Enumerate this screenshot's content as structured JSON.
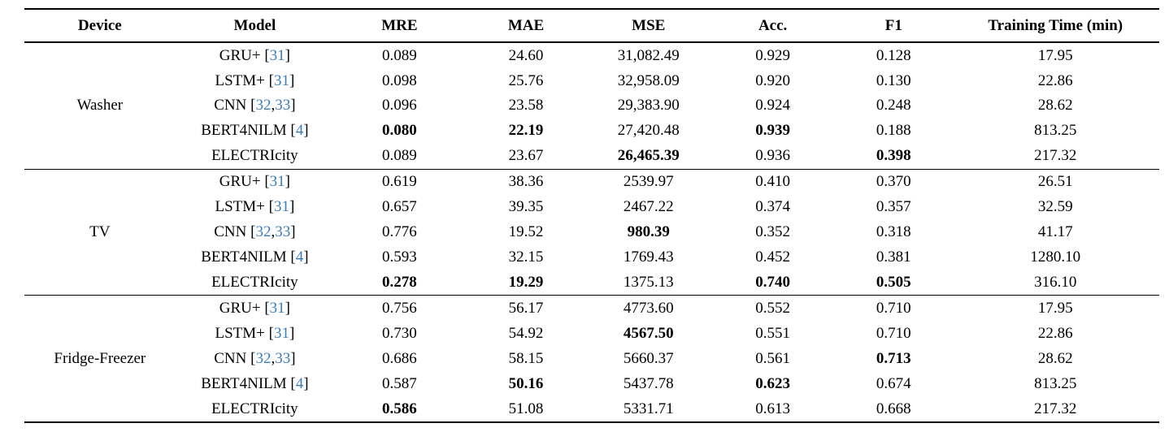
{
  "table": {
    "headers": [
      "Device",
      "Model",
      "MRE",
      "MAE",
      "MSE",
      "Acc.",
      "F1",
      "Training Time (min)"
    ],
    "citation_color": "#3A7CBE",
    "groups": [
      {
        "device": "Washer",
        "rows": [
          {
            "model": [
              {
                "t": "GRU+ ["
              },
              {
                "t": "31",
                "cite": true
              },
              {
                "t": "]"
              }
            ],
            "cells": [
              {
                "v": "0.089"
              },
              {
                "v": "24.60"
              },
              {
                "v": "31,082.49"
              },
              {
                "v": "0.929"
              },
              {
                "v": "0.128"
              },
              {
                "v": "17.95"
              }
            ]
          },
          {
            "model": [
              {
                "t": "LSTM+ ["
              },
              {
                "t": "31",
                "cite": true
              },
              {
                "t": "]"
              }
            ],
            "cells": [
              {
                "v": "0.098"
              },
              {
                "v": "25.76"
              },
              {
                "v": "32,958.09"
              },
              {
                "v": "0.920"
              },
              {
                "v": "0.130"
              },
              {
                "v": "22.86"
              }
            ]
          },
          {
            "model": [
              {
                "t": "CNN ["
              },
              {
                "t": "32",
                "cite": true
              },
              {
                "t": ","
              },
              {
                "t": "33",
                "cite": true
              },
              {
                "t": "]"
              }
            ],
            "cells": [
              {
                "v": "0.096"
              },
              {
                "v": "23.58"
              },
              {
                "v": "29,383.90"
              },
              {
                "v": "0.924"
              },
              {
                "v": "0.248"
              },
              {
                "v": "28.62"
              }
            ]
          },
          {
            "model": [
              {
                "t": "BERT4NILM ["
              },
              {
                "t": "4",
                "cite": true
              },
              {
                "t": "]"
              }
            ],
            "cells": [
              {
                "v": "0.080",
                "b": true
              },
              {
                "v": "22.19",
                "b": true
              },
              {
                "v": "27,420.48"
              },
              {
                "v": "0.939",
                "b": true
              },
              {
                "v": "0.188"
              },
              {
                "v": "813.25"
              }
            ]
          },
          {
            "model": [
              {
                "t": "ELECTRIcity"
              }
            ],
            "cells": [
              {
                "v": "0.089"
              },
              {
                "v": "23.67"
              },
              {
                "v": "26,465.39",
                "b": true
              },
              {
                "v": "0.936"
              },
              {
                "v": "0.398",
                "b": true
              },
              {
                "v": "217.32"
              }
            ]
          }
        ]
      },
      {
        "device": "TV",
        "rows": [
          {
            "model": [
              {
                "t": "GRU+ ["
              },
              {
                "t": "31",
                "cite": true
              },
              {
                "t": "]"
              }
            ],
            "cells": [
              {
                "v": "0.619"
              },
              {
                "v": "38.36"
              },
              {
                "v": "2539.97"
              },
              {
                "v": "0.410"
              },
              {
                "v": "0.370"
              },
              {
                "v": "26.51"
              }
            ]
          },
          {
            "model": [
              {
                "t": "LSTM+ ["
              },
              {
                "t": "31",
                "cite": true
              },
              {
                "t": "]"
              }
            ],
            "cells": [
              {
                "v": "0.657"
              },
              {
                "v": "39.35"
              },
              {
                "v": "2467.22"
              },
              {
                "v": "0.374"
              },
              {
                "v": "0.357"
              },
              {
                "v": "32.59"
              }
            ]
          },
          {
            "model": [
              {
                "t": "CNN ["
              },
              {
                "t": "32",
                "cite": true
              },
              {
                "t": ","
              },
              {
                "t": "33",
                "cite": true
              },
              {
                "t": "]"
              }
            ],
            "cells": [
              {
                "v": "0.776"
              },
              {
                "v": "19.52"
              },
              {
                "v": "980.39",
                "b": true
              },
              {
                "v": "0.352"
              },
              {
                "v": "0.318"
              },
              {
                "v": "41.17"
              }
            ]
          },
          {
            "model": [
              {
                "t": "BERT4NILM ["
              },
              {
                "t": "4",
                "cite": true
              },
              {
                "t": "]"
              }
            ],
            "cells": [
              {
                "v": "0.593"
              },
              {
                "v": "32.15"
              },
              {
                "v": "1769.43"
              },
              {
                "v": "0.452"
              },
              {
                "v": "0.381"
              },
              {
                "v": "1280.10"
              }
            ]
          },
          {
            "model": [
              {
                "t": "ELECTRIcity"
              }
            ],
            "cells": [
              {
                "v": "0.278",
                "b": true
              },
              {
                "v": "19.29",
                "b": true
              },
              {
                "v": "1375.13"
              },
              {
                "v": "0.740",
                "b": true
              },
              {
                "v": "0.505",
                "b": true
              },
              {
                "v": "316.10"
              }
            ]
          }
        ]
      },
      {
        "device": "Fridge-Freezer",
        "rows": [
          {
            "model": [
              {
                "t": "GRU+ ["
              },
              {
                "t": "31",
                "cite": true
              },
              {
                "t": "]"
              }
            ],
            "cells": [
              {
                "v": "0.756"
              },
              {
                "v": "56.17"
              },
              {
                "v": "4773.60"
              },
              {
                "v": "0.552"
              },
              {
                "v": "0.710"
              },
              {
                "v": "17.95"
              }
            ]
          },
          {
            "model": [
              {
                "t": "LSTM+ ["
              },
              {
                "t": "31",
                "cite": true
              },
              {
                "t": "]"
              }
            ],
            "cells": [
              {
                "v": "0.730"
              },
              {
                "v": "54.92"
              },
              {
                "v": "4567.50",
                "b": true
              },
              {
                "v": "0.551"
              },
              {
                "v": "0.710"
              },
              {
                "v": "22.86"
              }
            ]
          },
          {
            "model": [
              {
                "t": "CNN ["
              },
              {
                "t": "32",
                "cite": true
              },
              {
                "t": ","
              },
              {
                "t": "33",
                "cite": true
              },
              {
                "t": "]"
              }
            ],
            "cells": [
              {
                "v": "0.686"
              },
              {
                "v": "58.15"
              },
              {
                "v": "5660.37"
              },
              {
                "v": "0.561"
              },
              {
                "v": "0.713",
                "b": true
              },
              {
                "v": "28.62"
              }
            ]
          },
          {
            "model": [
              {
                "t": "BERT4NILM ["
              },
              {
                "t": "4",
                "cite": true
              },
              {
                "t": "]"
              }
            ],
            "cells": [
              {
                "v": "0.587"
              },
              {
                "v": "50.16",
                "b": true
              },
              {
                "v": "5437.78"
              },
              {
                "v": "0.623",
                "b": true
              },
              {
                "v": "0.674"
              },
              {
                "v": "813.25"
              }
            ]
          },
          {
            "model": [
              {
                "t": "ELECTRIcity"
              }
            ],
            "cells": [
              {
                "v": "0.586",
                "b": true
              },
              {
                "v": "51.08"
              },
              {
                "v": "5331.71"
              },
              {
                "v": "0.613"
              },
              {
                "v": "0.668"
              },
              {
                "v": "217.32"
              }
            ]
          }
        ]
      }
    ]
  }
}
